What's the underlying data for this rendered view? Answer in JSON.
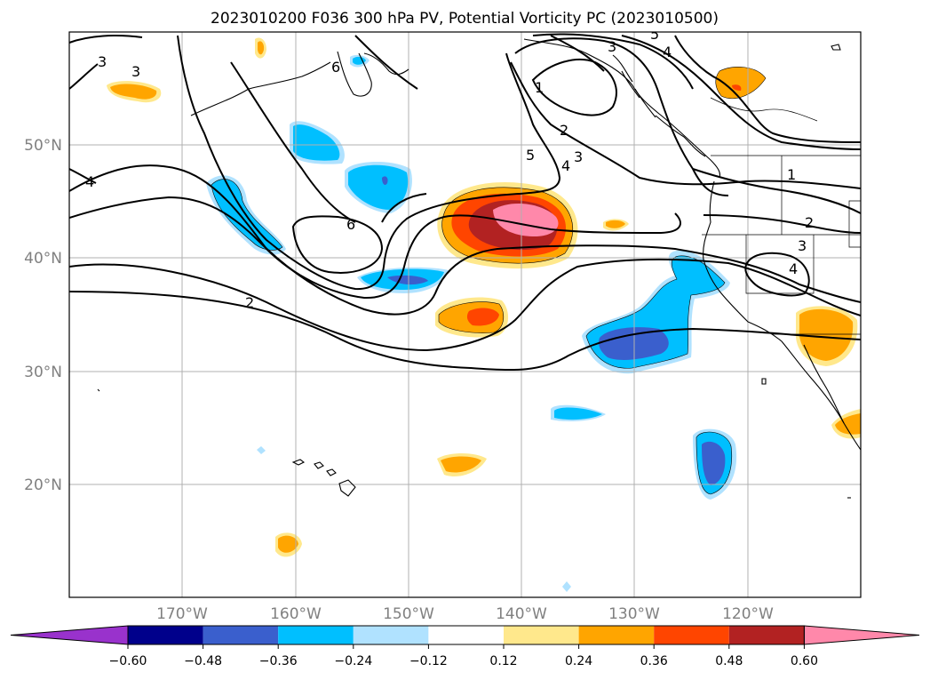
{
  "title": "2023010200 F036 300 hPa PV, Potential Vorticity PC (2023010500)",
  "lon_labels": [
    "170°W",
    "160°W",
    "150°W",
    "140°W",
    "130°W",
    "120°W"
  ],
  "lat_labels": [
    "50°N",
    "40°N",
    "30°N",
    "20°N"
  ],
  "colorbar": {
    "tick_labels": [
      "−0.60",
      "−0.48",
      "−0.36",
      "−0.24",
      "−0.12",
      "0.12",
      "0.24",
      "0.36",
      "0.48",
      "0.60"
    ],
    "colors": [
      "#9932cc",
      "#00008b",
      "#3a5fcd",
      "#00bfff",
      "#b0e2ff",
      "#ffffff",
      "#ffe88c",
      "#ffa500",
      "#ff4500",
      "#b22222",
      "#ff88aa"
    ]
  },
  "contour_labels": [
    "3",
    "3",
    "4",
    "6",
    "5",
    "1",
    "2",
    "3",
    "4",
    "3",
    "5",
    "4",
    "2",
    "6",
    "1",
    "2",
    "3",
    "4"
  ]
}
